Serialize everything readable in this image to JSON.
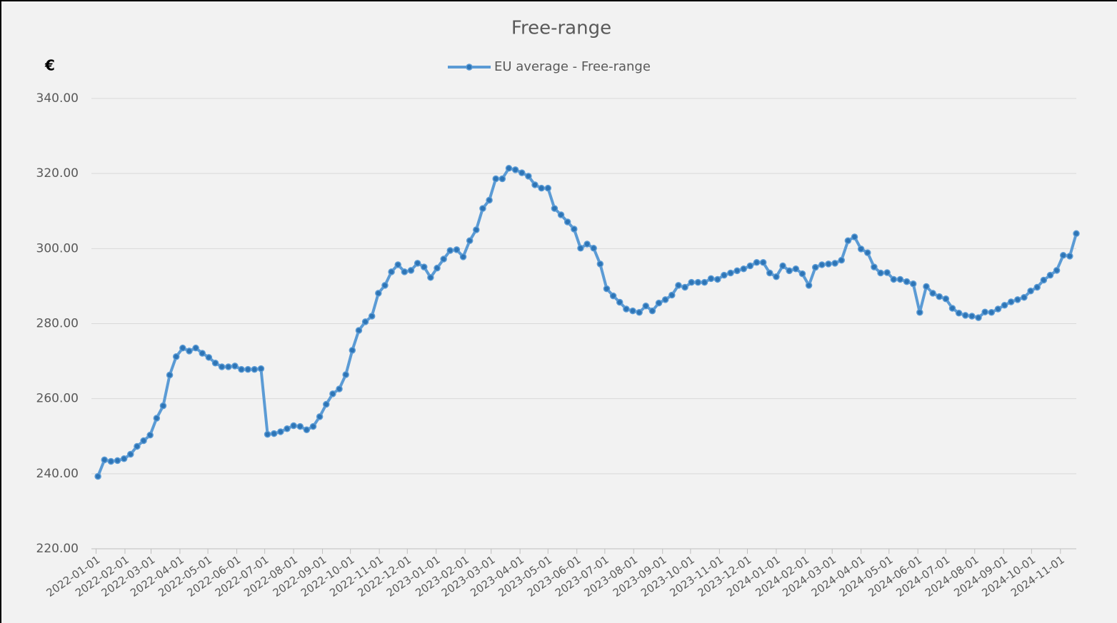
{
  "chart_data": {
    "type": "line",
    "title": "Free-range",
    "y_label": "€",
    "x": [
      "2022-01-03",
      "2022-01-10",
      "2022-01-17",
      "2022-01-24",
      "2022-01-31",
      "2022-02-07",
      "2022-02-14",
      "2022-02-21",
      "2022-02-28",
      "2022-03-07",
      "2022-03-14",
      "2022-03-21",
      "2022-03-28",
      "2022-04-04",
      "2022-04-11",
      "2022-04-18",
      "2022-04-25",
      "2022-05-02",
      "2022-05-09",
      "2022-05-16",
      "2022-05-23",
      "2022-05-30",
      "2022-06-06",
      "2022-06-13",
      "2022-06-20",
      "2022-06-27",
      "2022-07-04",
      "2022-07-11",
      "2022-07-18",
      "2022-07-25",
      "2022-08-01",
      "2022-08-08",
      "2022-08-15",
      "2022-08-22",
      "2022-08-29",
      "2022-09-05",
      "2022-09-12",
      "2022-09-19",
      "2022-09-26",
      "2022-10-03",
      "2022-10-10",
      "2022-10-17",
      "2022-10-24",
      "2022-10-31",
      "2022-11-07",
      "2022-11-14",
      "2022-11-21",
      "2022-11-28",
      "2022-12-05",
      "2022-12-12",
      "2022-12-19",
      "2022-12-26",
      "2023-01-02",
      "2023-01-09",
      "2023-01-16",
      "2023-01-23",
      "2023-01-30",
      "2023-02-06",
      "2023-02-13",
      "2023-02-20",
      "2023-02-27",
      "2023-03-06",
      "2023-03-13",
      "2023-03-20",
      "2023-03-27",
      "2023-04-03",
      "2023-04-10",
      "2023-04-17",
      "2023-04-24",
      "2023-05-01",
      "2023-05-08",
      "2023-05-15",
      "2023-05-22",
      "2023-05-29",
      "2023-06-05",
      "2023-06-12",
      "2023-06-19",
      "2023-06-26",
      "2023-07-03",
      "2023-07-10",
      "2023-07-17",
      "2023-07-24",
      "2023-07-31",
      "2023-08-07",
      "2023-08-14",
      "2023-08-21",
      "2023-08-28",
      "2023-09-04",
      "2023-09-11",
      "2023-09-18",
      "2023-09-25",
      "2023-10-02",
      "2023-10-09",
      "2023-10-16",
      "2023-10-23",
      "2023-10-30",
      "2023-11-06",
      "2023-11-13",
      "2023-11-20",
      "2023-11-27",
      "2023-12-04",
      "2023-12-11",
      "2023-12-18",
      "2023-12-25",
      "2024-01-01",
      "2024-01-08",
      "2024-01-15",
      "2024-01-22",
      "2024-01-29",
      "2024-02-05",
      "2024-02-12",
      "2024-02-19",
      "2024-02-26",
      "2024-03-04",
      "2024-03-11",
      "2024-03-18",
      "2024-03-25",
      "2024-04-01",
      "2024-04-08",
      "2024-04-15",
      "2024-04-22",
      "2024-04-29",
      "2024-05-06",
      "2024-05-13",
      "2024-05-20",
      "2024-05-27",
      "2024-06-03",
      "2024-06-10",
      "2024-06-17",
      "2024-06-24",
      "2024-07-01",
      "2024-07-08",
      "2024-07-15",
      "2024-07-22",
      "2024-07-29",
      "2024-08-05",
      "2024-08-12",
      "2024-08-19",
      "2024-08-26",
      "2024-09-02",
      "2024-09-09",
      "2024-09-16",
      "2024-09-23",
      "2024-09-30",
      "2024-10-07",
      "2024-10-14",
      "2024-10-21",
      "2024-10-28",
      "2024-11-04",
      "2024-11-11",
      "2024-11-18"
    ],
    "series": [
      {
        "name": "EU average - Free-range",
        "color": "#5b9bd5",
        "marker_color": "#2e75b6",
        "values": [
          239.3,
          243.7,
          243.3,
          243.5,
          244.0,
          245.2,
          247.3,
          248.8,
          250.3,
          254.8,
          258.1,
          266.3,
          271.2,
          273.5,
          272.7,
          273.5,
          272.1,
          271.0,
          269.5,
          268.5,
          268.5,
          268.7,
          267.8,
          267.8,
          267.8,
          268.0,
          250.5,
          250.7,
          251.2,
          252.0,
          252.8,
          252.6,
          251.7,
          252.6,
          255.2,
          258.5,
          261.3,
          262.6,
          266.4,
          272.9,
          278.2,
          280.5,
          282.0,
          288.1,
          290.2,
          293.8,
          295.7,
          293.8,
          294.2,
          296.1,
          295.1,
          292.3,
          294.8,
          297.2,
          299.5,
          299.7,
          297.8,
          302.1,
          305.0,
          310.7,
          312.9,
          318.6,
          318.6,
          321.4,
          321.0,
          320.2,
          319.3,
          317.0,
          316.1,
          316.1,
          310.7,
          309.0,
          307.1,
          305.2,
          300.1,
          301.2,
          300.1,
          295.9,
          289.3,
          287.4,
          285.7,
          283.9,
          283.4,
          283.0,
          284.7,
          283.4,
          285.5,
          286.4,
          287.6,
          290.2,
          289.7,
          291.0,
          291.0,
          291.0,
          292.0,
          291.8,
          292.9,
          293.5,
          294.1,
          294.6,
          295.4,
          296.3,
          296.3,
          293.5,
          292.5,
          295.4,
          294.1,
          294.6,
          293.3,
          290.2,
          295.0,
          295.7,
          295.9,
          296.1,
          296.9,
          302.1,
          303.1,
          299.9,
          298.9,
          295.1,
          293.5,
          293.6,
          291.8,
          291.8,
          291.2,
          290.6,
          283.0,
          289.9,
          288.1,
          287.2,
          286.6,
          284.1,
          282.8,
          282.2,
          282.0,
          281.6,
          283.1,
          283.0,
          283.9,
          284.9,
          285.8,
          286.4,
          287.0,
          288.7,
          289.7,
          291.6,
          292.9,
          294.2,
          298.2,
          298.0,
          304.0
        ]
      }
    ],
    "xlim": [
      "2021-12-27",
      "2024-11-18"
    ],
    "xticks": [
      "2022-01-01",
      "2022-02-01",
      "2022-03-01",
      "2022-04-01",
      "2022-05-01",
      "2022-06-01",
      "2022-07-01",
      "2022-08-01",
      "2022-09-01",
      "2022-10-01",
      "2022-11-01",
      "2022-12-01",
      "2023-01-01",
      "2023-02-01",
      "2023-03-01",
      "2023-04-01",
      "2023-05-01",
      "2023-06-01",
      "2023-07-01",
      "2023-08-01",
      "2023-09-01",
      "2023-10-01",
      "2023-11-01",
      "2023-12-01",
      "2024-01-01",
      "2024-02-01",
      "2024-03-01",
      "2024-04-01",
      "2024-05-01",
      "2024-06-01",
      "2024-07-01",
      "2024-08-01",
      "2024-09-01",
      "2024-10-01",
      "2024-11-01"
    ],
    "ylim": [
      220,
      340
    ],
    "yticks": [
      {
        "value": 220,
        "label": "220.00"
      },
      {
        "value": 240,
        "label": "240.00"
      },
      {
        "value": 260,
        "label": "260.00"
      },
      {
        "value": 280,
        "label": "280.00"
      },
      {
        "value": 300,
        "label": "300.00"
      },
      {
        "value": 320,
        "label": "320.00"
      },
      {
        "value": 340,
        "label": "340.00"
      }
    ],
    "grid": true,
    "legend": "top"
  }
}
